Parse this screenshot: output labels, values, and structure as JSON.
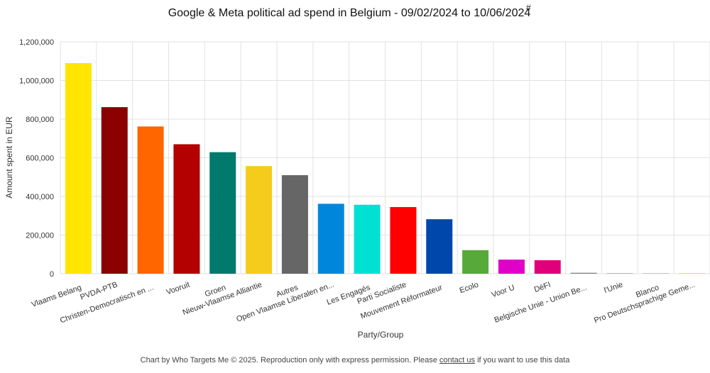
{
  "chart_data": {
    "type": "bar",
    "title": "Google & Meta political ad spend in Belgium - 09/02/2024 to 10/06/2024",
    "title_marker": "#",
    "xlabel": "Party/Group",
    "ylabel": "Amount spent in EUR",
    "ylim": [
      0,
      1200000
    ],
    "yticks": [
      0,
      200000,
      400000,
      600000,
      800000,
      1000000,
      1200000
    ],
    "ytick_labels": [
      "0",
      "200,000",
      "400,000",
      "600,000",
      "800,000",
      "1,000,000",
      "1,200,000"
    ],
    "grid": true,
    "categories": [
      "Vlaams Belang",
      "PVDA-PTB",
      "Christen-Democratisch en ...",
      "Vooruit",
      "Groen",
      "Nieuw-Vlaamse Alliantie",
      "Autres",
      "Open Vlaamse Liberalen en...",
      "Les Engagés",
      "Parti Socialiste",
      "Mouvement Réformateur",
      "Ecolo",
      "Voor U",
      "DéFI",
      "Belgische Unie - Union Be...",
      "l'Unie",
      "Blanco",
      "Pro Deutschsprachige Geme..."
    ],
    "values": [
      1090000,
      862000,
      762000,
      670000,
      629000,
      557000,
      510000,
      362000,
      357000,
      345000,
      282000,
      122000,
      73000,
      70000,
      5000,
      2000,
      1000,
      1000
    ],
    "colors": [
      "#FFE500",
      "#8B0000",
      "#FF6600",
      "#B30000",
      "#007A6C",
      "#F5CC1B",
      "#666666",
      "#0087DC",
      "#00E1D4",
      "#FF0000",
      "#0047AB",
      "#57A93A",
      "#E000C8",
      "#E0007A",
      "#888888",
      "#BBBBBB",
      "#CCCCCC",
      "#E8D5A0"
    ]
  },
  "footer": {
    "prefix": "Chart by Who Targets Me © 2025. Reproduction only with express permission. Please ",
    "link": "contact us",
    "suffix": " if you want to use this data"
  }
}
